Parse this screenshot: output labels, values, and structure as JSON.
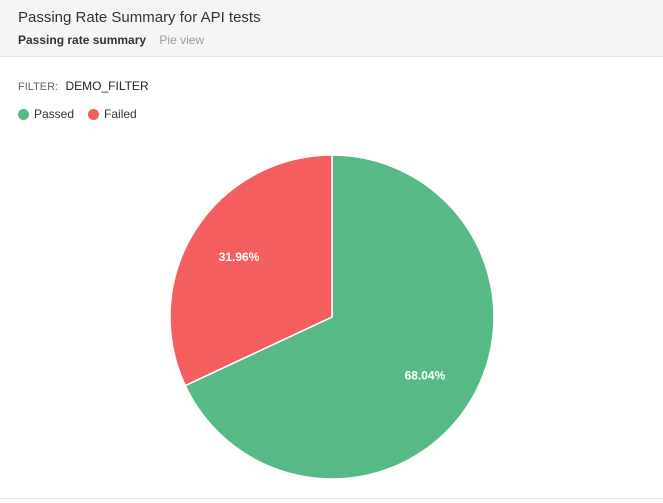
{
  "header": {
    "title": "Passing Rate Summary for API tests",
    "subtitle": "Passing rate summary",
    "view": "Pie view"
  },
  "filter": {
    "label": "FILTER:",
    "value": "DEMO_FILTER"
  },
  "chart_data": {
    "type": "pie",
    "categories": [
      "Passed",
      "Failed"
    ],
    "values": [
      68.04,
      31.96
    ],
    "data_labels": [
      "68.04%",
      "31.96%"
    ],
    "colors": [
      "#57b986",
      "#f55e5e"
    ],
    "legend_position": "top-left"
  }
}
